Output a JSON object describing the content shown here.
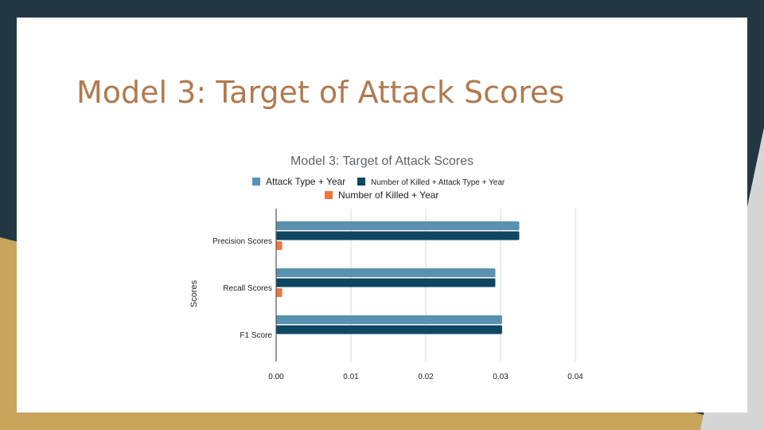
{
  "slide": {
    "title": "Model 3: Target of Attack Scores"
  },
  "colors": {
    "background_dark": "#233643",
    "background_gold": "#c9a45c",
    "title": "#b07a4f",
    "series_1": "#5a90b0",
    "series_2": "#0f4763",
    "series_3": "#f4743b",
    "grid": "#d9d9d9"
  },
  "chart_data": {
    "type": "bar",
    "orientation": "horizontal",
    "title": "Model 3: Target of Attack Scores",
    "xlabel": "",
    "ylabel": "Scores",
    "categories": [
      "Precision Scores",
      "Recall Scores",
      "F1 Score"
    ],
    "series": [
      {
        "name": "Attack Type + Year",
        "values": [
          0.0325,
          0.0293,
          0.0302
        ]
      },
      {
        "name": "Number of Killed + Attack Type + Year",
        "values": [
          0.0325,
          0.0293,
          0.0302
        ]
      },
      {
        "name": "Number of Killed + Year",
        "values": [
          0.0008,
          0.0008,
          0.0
        ]
      }
    ],
    "xlim": [
      0,
      0.04
    ],
    "xticks": [
      "0.00",
      "0.01",
      "0.02",
      "0.03",
      "0.04"
    ],
    "grid": true,
    "legend_position": "top"
  }
}
